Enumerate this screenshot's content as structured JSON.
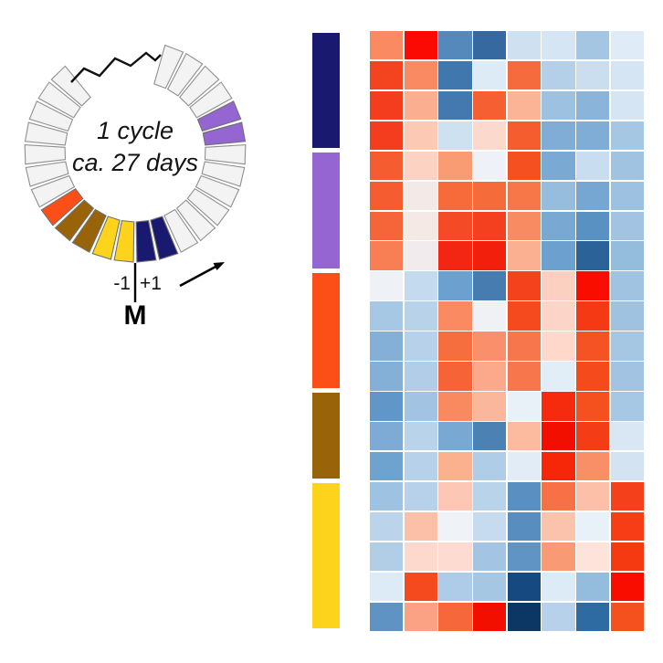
{
  "cycle_diagram": {
    "center_label_line1": "1 cycle",
    "center_label_line2": "ca. 27 days",
    "minus_one_label": "-1",
    "plus_one_label": "+1",
    "m_label": "M",
    "direction": "counterclockwise",
    "slot_degrees": 11.8,
    "segment_colors": {
      "white": "#f4f3f4",
      "navy": "#191970",
      "purple": "#9565d2",
      "orange": "#fb4f17",
      "brown": "#996309",
      "yellow": "#fdd31b"
    },
    "segments_ccw_from_plus1": [
      "navy",
      "navy",
      "white",
      "white",
      "white",
      "white",
      "white",
      "white",
      "purple",
      "purple",
      "white",
      "white",
      "white",
      "white"
    ],
    "segments_cw_from_minus1": [
      "yellow",
      "yellow",
      "brown",
      "brown",
      "orange",
      "white",
      "white",
      "white",
      "white",
      "white",
      "white",
      "white"
    ]
  },
  "phase_bar": {
    "blocks": [
      {
        "name": "navy",
        "color": "#191970",
        "rows": 4
      },
      {
        "name": "purple",
        "color": "#9565d2",
        "rows": 4
      },
      {
        "name": "orange",
        "color": "#fb4f17",
        "rows": 4
      },
      {
        "name": "brown",
        "color": "#996309",
        "rows": 3
      },
      {
        "name": "yellow",
        "color": "#fdd31b",
        "rows": 5
      }
    ]
  },
  "chart_data": {
    "type": "heatmap",
    "rows": 20,
    "columns": 8,
    "colormap": "diverging red-white-blue (red = high, blue = low)",
    "row_groups": [
      {
        "phase": "navy",
        "rows": 4
      },
      {
        "phase": "purple",
        "rows": 4
      },
      {
        "phase": "orange",
        "rows": 4
      },
      {
        "phase": "brown",
        "rows": 3
      },
      {
        "phase": "yellow",
        "rows": 5
      }
    ],
    "cell_colors": [
      [
        "#f98a61",
        "#fa0a03",
        "#5589bc",
        "#36699f",
        "#cfe0f0",
        "#d5e5f3",
        "#a4c6e3",
        "#dfebf6"
      ],
      [
        "#f4431f",
        "#f98a61",
        "#4078ae",
        "#dcebf6",
        "#f66b3d",
        "#b4cfe8",
        "#cadeef",
        "#d5e5f3"
      ],
      [
        "#f43d1f",
        "#fbae90",
        "#4379ae",
        "#f55f31",
        "#fbb496",
        "#9dc1e0",
        "#8bb4da",
        "#d5e5f3"
      ],
      [
        "#f43d1f",
        "#fcc9b4",
        "#cde1f1",
        "#fcd9cd",
        "#f55c2e",
        "#7fadd6",
        "#7fadd6",
        "#a5c7e4"
      ],
      [
        "#f55c30",
        "#fcd3c2",
        "#fa9c73",
        "#eef1f7",
        "#f5501f",
        "#7aaad4",
        "#c8ddef",
        "#a0c3e2"
      ],
      [
        "#f55c30",
        "#f3eae8",
        "#f76b3a",
        "#f66b3a",
        "#f87748",
        "#96bdde",
        "#76a7d2",
        "#9dc1e0"
      ],
      [
        "#f66539",
        "#f5e9e5",
        "#f54a26",
        "#f4401e",
        "#f98b62",
        "#79a9d3",
        "#5a91c3",
        "#a2c4e2"
      ],
      [
        "#f87f54",
        "#f2ebee",
        "#f32613",
        "#f21f0c",
        "#fbb091",
        "#6ca0ce",
        "#2b6399",
        "#94bcdd"
      ],
      [
        "#eef1f6",
        "#c4daee",
        "#6ca0ce",
        "#477cb0",
        "#f4431c",
        "#fcd0c0",
        "#f90d00",
        "#a0c3e2"
      ],
      [
        "#a6c8e4",
        "#b8d2ea",
        "#f98a61",
        "#f0f1f5",
        "#f54a1e",
        "#fdd5c8",
        "#f53914",
        "#9fc2e1"
      ],
      [
        "#84afd7",
        "#b6d1e9",
        "#f66d3e",
        "#f9906b",
        "#f8764b",
        "#fdd8cb",
        "#f55324",
        "#a6c7e4"
      ],
      [
        "#84afd7",
        "#b1cde7",
        "#f66336",
        "#fba98a",
        "#f8764b",
        "#e1edf7",
        "#f54a1c",
        "#a2c4e2"
      ],
      [
        "#6197c8",
        "#a2c4e2",
        "#f9895f",
        "#fbb79c",
        "#e8f0f8",
        "#f62b0d",
        "#f5511f",
        "#a6c8e5"
      ],
      [
        "#7dabd5",
        "#b9d3ea",
        "#79a9d3",
        "#4c81b4",
        "#fcbb9e",
        "#f30f00",
        "#f43d16",
        "#d9e7f4"
      ],
      [
        "#6ea2cf",
        "#b6d1e9",
        "#fbb08e",
        "#b0cde7",
        "#e2ecf6",
        "#f62708",
        "#f98f67",
        "#d3e3f2"
      ],
      [
        "#9ec2e1",
        "#b6d1e9",
        "#fcc7b4",
        "#b9d3ea",
        "#5a8fc1",
        "#f77046",
        "#fbc0a7",
        "#f5401c"
      ],
      [
        "#bcd4eb",
        "#fcc0a8",
        "#eff2f7",
        "#c6dbef",
        "#588dc0",
        "#fbc3ab",
        "#e8f0f8",
        "#f63d15"
      ],
      [
        "#b2cee7",
        "#fcd9cc",
        "#fddbd0",
        "#a3c5e3",
        "#5f94c4",
        "#f89a74",
        "#fde3da",
        "#f53a12"
      ],
      [
        "#dcebf6",
        "#f54a1e",
        "#aecce7",
        "#a5c7e4",
        "#15497f",
        "#dcebf6",
        "#94bcdd",
        "#f90d00"
      ],
      [
        "#5e93c4",
        "#fba284",
        "#f6683c",
        "#f30f00",
        "#0c3765",
        "#b6d1e9",
        "#2f6ba3",
        "#f5511f"
      ]
    ]
  }
}
